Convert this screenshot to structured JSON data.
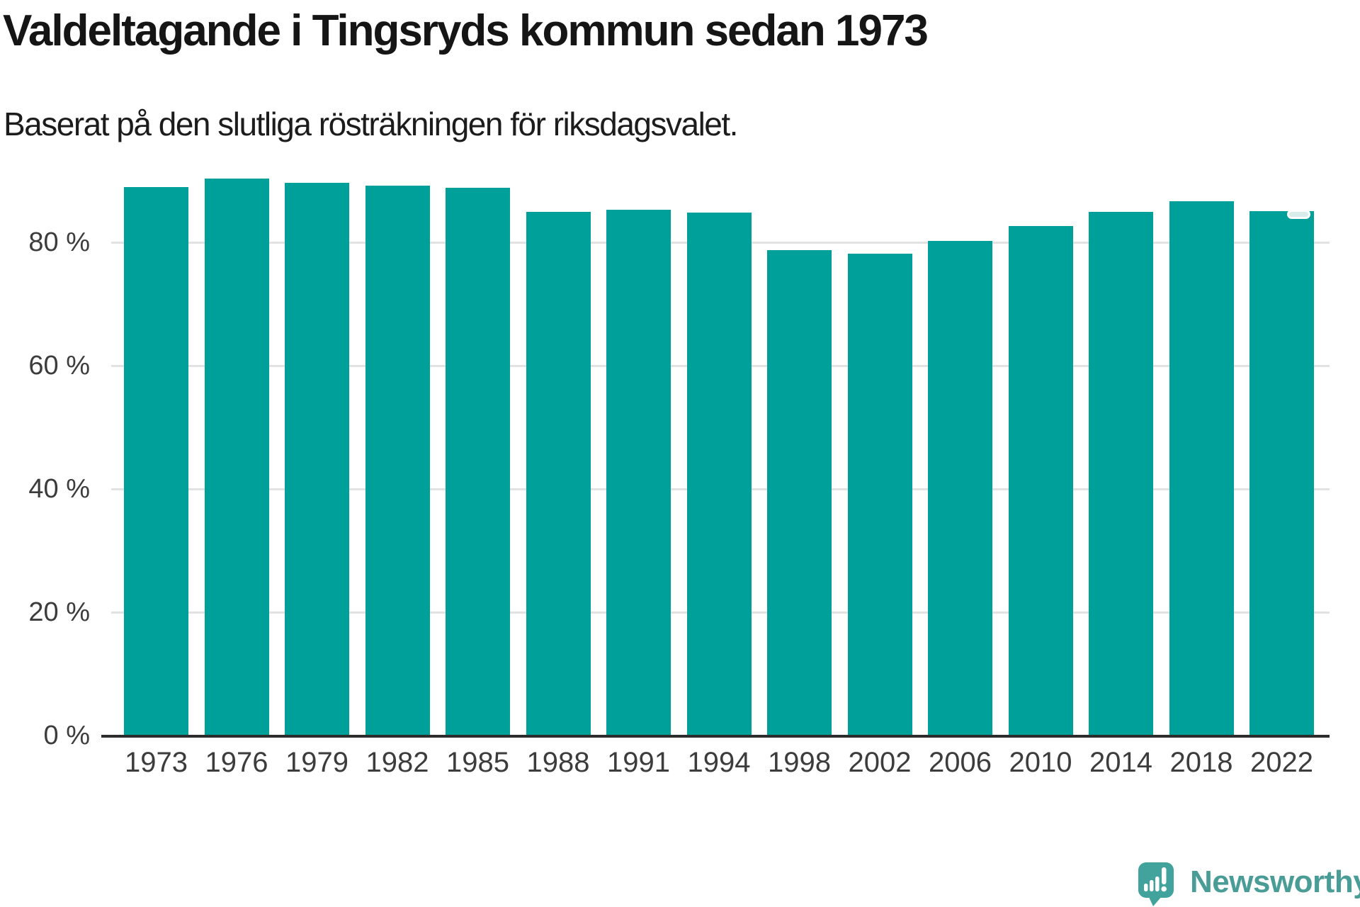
{
  "header": {
    "title": "Valdeltagande i Tingsryds kommun sedan 1973",
    "subtitle": "Baserat på den slutliga rösträkningen för riksdagsvalet."
  },
  "chart_data": {
    "type": "bar",
    "title": "Valdeltagande i Tingsryds kommun sedan 1973",
    "subtitle": "Baserat på den slutliga rösträkningen för riksdagsvalet.",
    "unit": "%",
    "categories": [
      "1973",
      "1976",
      "1979",
      "1982",
      "1985",
      "1988",
      "1991",
      "1994",
      "1998",
      "2002",
      "2006",
      "2010",
      "2014",
      "2018",
      "2022"
    ],
    "values": [
      89.0,
      90.3,
      89.7,
      89.2,
      88.9,
      84.9,
      85.3,
      84.8,
      78.7,
      78.2,
      80.2,
      82.6,
      84.9,
      86.7,
      85.1
    ],
    "xlabel": "",
    "ylabel": "",
    "ylim": [
      0,
      100
    ],
    "yticks": [
      {
        "value": 0,
        "label": "0 %"
      },
      {
        "value": 20,
        "label": "20 %"
      },
      {
        "value": 40,
        "label": "40 %"
      },
      {
        "value": 60,
        "label": "60 %"
      },
      {
        "value": 80,
        "label": "80 %"
      }
    ],
    "grid": "horizontal-only",
    "legend": "none",
    "highlight_marker": {
      "category": "2022",
      "bar_index": 14
    }
  },
  "colors": {
    "background": "#ffffff",
    "bar": "#00a09a",
    "axis": "#2c2c2c",
    "grid": "#e2e2e2",
    "tick_label": "#3c3c3c",
    "marker_fill": "#d8eceb",
    "marker_border": "#ffffff",
    "logo_icon": "#41a39c",
    "logo_text": "#4a9c96"
  },
  "branding": {
    "logo_text": "Newsworthy",
    "logo_icon": "newsworthy-speech-bubble-barchart-icon"
  }
}
